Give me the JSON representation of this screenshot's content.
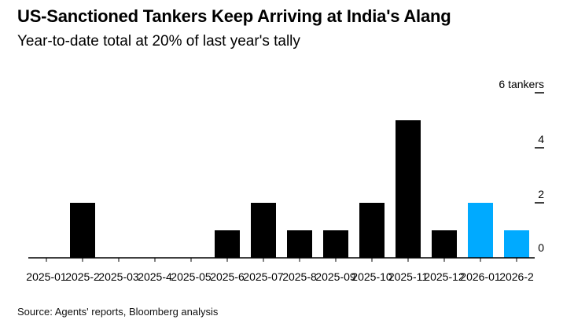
{
  "header": {
    "title": "US-Sanctioned Tankers Keep Arriving at India's Alang",
    "subtitle": "Year-to-date total at 20% of last year's tally"
  },
  "footer": {
    "source": "Source: Agents' reports, Bloomberg analysis"
  },
  "colors": {
    "bar_2025": "#000000",
    "bar_2026": "#00aaff",
    "axis": "#000000"
  },
  "chart_data": {
    "type": "bar",
    "title": "US-Sanctioned Tankers Keep Arriving at India's Alang",
    "subtitle": "Year-to-date total at 20% of last year's tally",
    "categories": [
      "2025-01",
      "2025-2",
      "2025-03",
      "2025-4",
      "2025-05",
      "2025-6",
      "2025-07",
      "2025-8",
      "2025-09",
      "2025-10",
      "2025-11",
      "2025-12",
      "2026-01",
      "2026-2"
    ],
    "values": [
      0,
      2,
      0,
      0,
      0,
      1,
      2,
      1,
      1,
      2,
      5,
      1,
      2,
      1
    ],
    "highlight_from_index": 12,
    "ylim": [
      0,
      6
    ],
    "y_ticks": [
      {
        "value": 0,
        "label": "0"
      },
      {
        "value": 2,
        "label": "2"
      },
      {
        "value": 4,
        "label": "4"
      },
      {
        "value": 6,
        "label": "6 tankers"
      }
    ],
    "y_axis_side": "right",
    "grid": false,
    "source": "Source: Agents' reports, Bloomberg analysis"
  }
}
